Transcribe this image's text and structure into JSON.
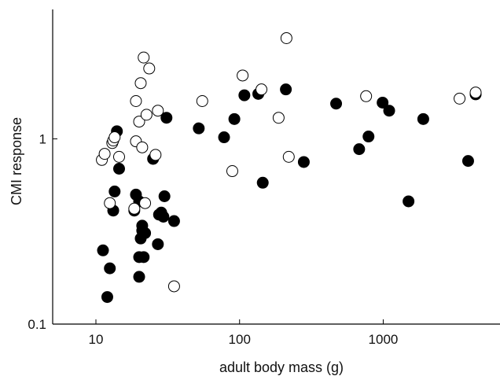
{
  "chart_data": {
    "type": "scatter",
    "title": "",
    "xlabel": "adult body mass (g)",
    "ylabel": "CMI response",
    "xscale": "log",
    "yscale": "log",
    "xlim": [
      5.0,
      6500
    ],
    "ylim": [
      0.1,
      5.0
    ],
    "xticks": [
      10,
      100,
      1000
    ],
    "xtick_labels": [
      "10",
      "100",
      "1000"
    ],
    "yticks": [
      0.1,
      1
    ],
    "ytick_labels": [
      "0.1",
      "1"
    ],
    "grid": false,
    "series": [
      {
        "marker": "filled-circle",
        "color": "#000000",
        "x": [
          11.2,
          12.0,
          12.5,
          13.2,
          13.5,
          14.0,
          14.5,
          19.0,
          18.5,
          20.0,
          20.5,
          21.0,
          21.5,
          22.0,
          20.0,
          21.0,
          20.0,
          25.0,
          27.0,
          28.5,
          27.5,
          29.5,
          30.0,
          35.0,
          31.0,
          52.0,
          78.0,
          92.0,
          108.0,
          135.0,
          145.0,
          210.0,
          280.0,
          470.0,
          680.0,
          790.0,
          990.0,
          1100.0,
          1500.0,
          1900.0,
          3900.0,
          4400.0
        ],
        "y": [
          0.25,
          0.14,
          0.2,
          0.41,
          0.52,
          1.1,
          0.69,
          0.5,
          0.41,
          0.46,
          0.29,
          0.34,
          0.23,
          0.31,
          0.23,
          0.32,
          0.18,
          0.78,
          0.27,
          0.4,
          0.39,
          0.38,
          0.49,
          0.36,
          1.3,
          1.14,
          1.02,
          1.28,
          1.72,
          1.75,
          0.58,
          1.85,
          0.75,
          1.55,
          0.88,
          1.03,
          1.57,
          1.42,
          0.46,
          1.28,
          0.76,
          1.74
        ]
      },
      {
        "marker": "open-circle",
        "color": "#000000",
        "x": [
          11.0,
          11.5,
          12.5,
          13.0,
          13.2,
          13.5,
          14.5,
          18.5,
          19.0,
          19.0,
          20.0,
          20.5,
          21.0,
          21.5,
          22.0,
          22.5,
          23.5,
          26.0,
          27.0,
          35.0,
          55.0,
          89.0,
          105.0,
          142.0,
          187.0,
          212.0,
          220.0,
          760.0,
          3400.0,
          4400.0
        ],
        "y": [
          0.77,
          0.83,
          0.45,
          0.95,
          0.98,
          1.02,
          0.8,
          0.42,
          1.6,
          0.97,
          1.24,
          2.0,
          0.9,
          2.75,
          0.45,
          1.35,
          2.4,
          0.82,
          1.42,
          0.16,
          1.6,
          0.67,
          2.2,
          1.85,
          1.3,
          3.5,
          0.8,
          1.7,
          1.65,
          1.78
        ]
      }
    ]
  }
}
